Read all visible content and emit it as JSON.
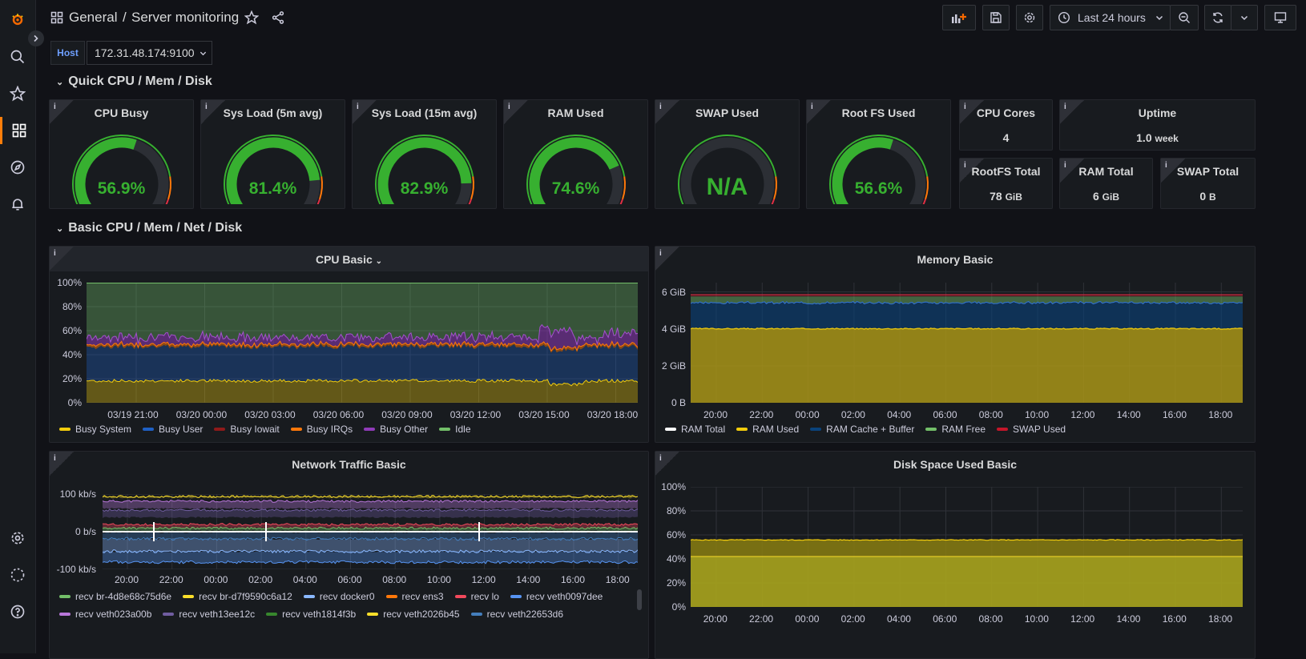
{
  "colors": {
    "green": "#37b030",
    "orange": "#ff780a",
    "red": "#e02f44",
    "yellow": "#f2cc0c",
    "blue": "#1f60c4",
    "grafana_orange": "#f46800"
  },
  "sidebar": {
    "items": [
      "grafana-logo-icon",
      "search-icon",
      "starred-icon",
      "dashboards-icon",
      "explore-icon",
      "alerting-icon",
      "configuration-icon",
      "user-icon",
      "help-icon"
    ]
  },
  "header": {
    "folder": "General",
    "separator": "/",
    "title": "Server monitoring",
    "time_range": "Last 24 hours"
  },
  "variables": {
    "host_label": "Host",
    "host_value": "172.31.48.174:9100"
  },
  "rows": {
    "quick": "Quick CPU / Mem / Disk",
    "basic": "Basic CPU / Mem / Net / Disk"
  },
  "gauges": [
    {
      "title": "CPU Busy",
      "value": "56.9%",
      "fraction": 0.569,
      "color": "#37b030"
    },
    {
      "title": "Sys Load (5m avg)",
      "value": "81.4%",
      "fraction": 0.814,
      "color": "#37b030"
    },
    {
      "title": "Sys Load (15m avg)",
      "value": "82.9%",
      "fraction": 0.829,
      "color": "#37b030"
    },
    {
      "title": "RAM Used",
      "value": "74.6%",
      "fraction": 0.746,
      "color": "#37b030"
    },
    {
      "title": "SWAP Used",
      "value": "N/A",
      "fraction": 0,
      "color": "#37b030"
    },
    {
      "title": "Root FS Used",
      "value": "56.6%",
      "fraction": 0.566,
      "color": "#37b030"
    }
  ],
  "stats": {
    "cpu_cores": {
      "title": "CPU Cores",
      "value": "4"
    },
    "uptime": {
      "title": "Uptime",
      "value": "1.0",
      "unit": "week"
    },
    "rootfs_total": {
      "title": "RootFS Total",
      "value": "78",
      "unit": "GiB"
    },
    "ram_total": {
      "title": "RAM Total",
      "value": "6",
      "unit": "GiB"
    },
    "swap_total": {
      "title": "SWAP Total",
      "value": "0",
      "unit": "B"
    }
  },
  "panels": {
    "cpu": {
      "title": "CPU Basic",
      "yticks": [
        "100%",
        "80%",
        "60%",
        "40%",
        "20%",
        "0%"
      ],
      "xticks": [
        "03/19 21:00",
        "03/20 00:00",
        "03/20 03:00",
        "03/20 06:00",
        "03/20 09:00",
        "03/20 12:00",
        "03/20 15:00",
        "03/20 18:00"
      ],
      "legend": [
        {
          "name": "Busy System",
          "color": "#f2cc0c"
        },
        {
          "name": "Busy User",
          "color": "#1f60c4"
        },
        {
          "name": "Busy Iowait",
          "color": "#8f1a1a"
        },
        {
          "name": "Busy IRQs",
          "color": "#ff780a"
        },
        {
          "name": "Busy Other",
          "color": "#8f3bb8"
        },
        {
          "name": "Idle",
          "color": "#73bf69"
        }
      ]
    },
    "memory": {
      "title": "Memory Basic",
      "yticks": [
        "6 GiB",
        "4 GiB",
        "2 GiB",
        "0 B"
      ],
      "xticks": [
        "20:00",
        "22:00",
        "00:00",
        "02:00",
        "04:00",
        "06:00",
        "08:00",
        "10:00",
        "12:00",
        "14:00",
        "16:00",
        "18:00"
      ],
      "legend": [
        {
          "name": "RAM Total",
          "color": "#ffffff"
        },
        {
          "name": "RAM Used",
          "color": "#f2cc0c"
        },
        {
          "name": "RAM Cache + Buffer",
          "color": "#0a437c"
        },
        {
          "name": "RAM Free",
          "color": "#73bf69"
        },
        {
          "name": "SWAP Used",
          "color": "#c4162a"
        }
      ]
    },
    "network": {
      "title": "Network Traffic Basic",
      "yticks": [
        "100 kb/s",
        "0 b/s",
        "-100 kb/s"
      ],
      "xticks": [
        "20:00",
        "22:00",
        "00:00",
        "02:00",
        "04:00",
        "06:00",
        "08:00",
        "10:00",
        "12:00",
        "14:00",
        "16:00",
        "18:00"
      ],
      "legend": [
        {
          "name": "recv br-4d8e68c75d6e",
          "color": "#73bf69"
        },
        {
          "name": "recv br-d7f9590c6a12",
          "color": "#fade2a"
        },
        {
          "name": "recv docker0",
          "color": "#8ab8ff"
        },
        {
          "name": "recv ens3",
          "color": "#ff780a"
        },
        {
          "name": "recv lo",
          "color": "#f2495c"
        },
        {
          "name": "recv veth0097dee",
          "color": "#5794f2"
        },
        {
          "name": "recv veth023a00b",
          "color": "#b877d9"
        },
        {
          "name": "recv veth13ee12c",
          "color": "#705da0"
        },
        {
          "name": "recv veth1814f3b",
          "color": "#37872d"
        },
        {
          "name": "recv veth2026b45",
          "color": "#fade2a"
        },
        {
          "name": "recv veth22653d6",
          "color": "#447ebc"
        }
      ]
    },
    "disk": {
      "title": "Disk Space Used Basic",
      "yticks": [
        "100%",
        "80%",
        "60%",
        "40%",
        "20%",
        "0%"
      ],
      "xticks": [
        "20:00",
        "22:00",
        "00:00",
        "02:00",
        "04:00",
        "06:00",
        "08:00",
        "10:00",
        "12:00",
        "14:00",
        "16:00",
        "18:00"
      ]
    }
  },
  "chart_data": [
    {
      "type": "area",
      "title": "CPU Basic",
      "x": [
        "03/19 21:00",
        "03/20 00:00",
        "03/20 03:00",
        "03/20 06:00",
        "03/20 09:00",
        "03/20 12:00",
        "03/20 15:00",
        "03/20 18:00"
      ],
      "ylim": [
        0,
        100
      ],
      "series": [
        {
          "name": "Busy System",
          "values": [
            17,
            18,
            18,
            18,
            17,
            18,
            15,
            17
          ]
        },
        {
          "name": "Busy User",
          "values": [
            27,
            28,
            27,
            28,
            28,
            27,
            26,
            27
          ]
        },
        {
          "name": "Busy IRQs",
          "values": [
            2,
            2,
            2,
            2,
            2,
            2,
            2,
            2
          ]
        },
        {
          "name": "Busy Other",
          "values": [
            6,
            5,
            6,
            5,
            6,
            6,
            12,
            8
          ]
        },
        {
          "name": "Idle",
          "values": [
            48,
            47,
            47,
            47,
            47,
            47,
            45,
            46
          ]
        }
      ]
    },
    {
      "type": "area",
      "title": "Memory Basic",
      "x": [
        "20:00",
        "22:00",
        "00:00",
        "02:00",
        "04:00",
        "06:00",
        "08:00",
        "10:00",
        "12:00",
        "14:00",
        "16:00",
        "18:00"
      ],
      "ylim": [
        0,
        6.5
      ],
      "yunit": "GiB",
      "series": [
        {
          "name": "RAM Total",
          "values": [
            5.8,
            5.8,
            5.8,
            5.8,
            5.8,
            5.8,
            5.8,
            5.8,
            5.8,
            5.8,
            5.8,
            5.8
          ]
        },
        {
          "name": "RAM Used",
          "values": [
            4.0,
            4.0,
            4.0,
            4.0,
            4.0,
            4.0,
            4.0,
            4.0,
            4.0,
            4.0,
            4.0,
            4.0
          ]
        },
        {
          "name": "RAM Cache + Buffer",
          "values": [
            1.4,
            1.4,
            1.4,
            1.4,
            1.4,
            1.4,
            1.4,
            1.4,
            1.4,
            1.4,
            1.4,
            1.4
          ]
        },
        {
          "name": "RAM Free",
          "values": [
            0.3,
            0.3,
            0.3,
            0.3,
            0.3,
            0.3,
            0.3,
            0.3,
            0.3,
            0.3,
            0.3,
            0.3
          ]
        }
      ]
    },
    {
      "type": "area",
      "title": "Network Traffic Basic",
      "x": [
        "20:00",
        "22:00",
        "00:00",
        "02:00",
        "04:00",
        "06:00",
        "08:00",
        "10:00",
        "12:00",
        "14:00",
        "16:00",
        "18:00"
      ],
      "ylim": [
        -100,
        100
      ],
      "yunit": "kb/s"
    },
    {
      "type": "area",
      "title": "Disk Space Used Basic",
      "x": [
        "20:00",
        "22:00",
        "00:00",
        "02:00",
        "04:00",
        "06:00",
        "08:00",
        "10:00",
        "12:00",
        "14:00",
        "16:00",
        "18:00"
      ],
      "ylim": [
        0,
        100
      ],
      "series": [
        {
          "values": [
            56,
            56,
            56,
            56,
            56,
            56,
            56,
            56,
            56,
            56,
            56,
            56
          ]
        },
        {
          "values": [
            42,
            42,
            42,
            42,
            42,
            42,
            42,
            42,
            42,
            42,
            42,
            42
          ]
        }
      ]
    }
  ]
}
